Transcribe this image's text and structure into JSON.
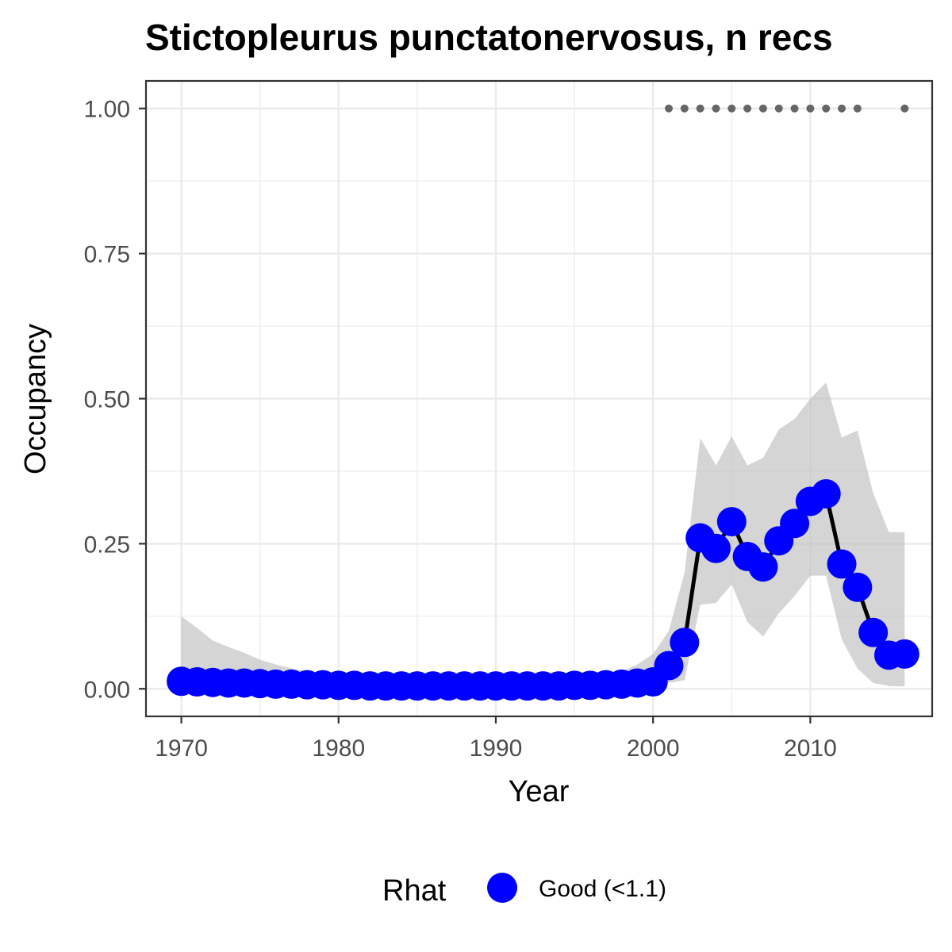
{
  "chart_data": {
    "type": "line",
    "title": "Stictopleurus punctatonervosus, n recs",
    "xlabel": "Year",
    "ylabel": "Occupancy",
    "xlim": [
      1967.75,
      2017.75
    ],
    "ylim": [
      -0.0475,
      1.0475
    ],
    "x_ticks": [
      1970,
      1980,
      1990,
      2000,
      2010
    ],
    "x_tick_labels": [
      "1970",
      "1980",
      "1990",
      "2000",
      "2010"
    ],
    "y_ticks": [
      0,
      0.25,
      0.5,
      0.75,
      1.0
    ],
    "y_tick_labels": [
      "0.00",
      "0.25",
      "0.50",
      "0.75",
      "1.00"
    ],
    "grid": true,
    "colors": {
      "point": "#0000ff",
      "line": "#000000",
      "ribbon": "#bebebe",
      "records": "#666666",
      "grid": "#ebebeb",
      "panel_border": "#333333"
    },
    "series": [
      {
        "name": "Occupancy",
        "legend_group": "Good (<1.1)",
        "x": [
          1970,
          1971,
          1972,
          1973,
          1974,
          1975,
          1976,
          1977,
          1978,
          1979,
          1980,
          1981,
          1982,
          1983,
          1984,
          1985,
          1986,
          1987,
          1988,
          1989,
          1990,
          1991,
          1992,
          1993,
          1994,
          1995,
          1996,
          1997,
          1998,
          1999,
          2000,
          2001,
          2002,
          2003,
          2004,
          2005,
          2006,
          2007,
          2008,
          2009,
          2010,
          2011,
          2012,
          2013,
          2014,
          2015,
          2016
        ],
        "y": [
          0.013,
          0.012,
          0.011,
          0.01,
          0.01,
          0.009,
          0.008,
          0.008,
          0.007,
          0.007,
          0.006,
          0.006,
          0.005,
          0.005,
          0.005,
          0.005,
          0.005,
          0.005,
          0.005,
          0.005,
          0.005,
          0.005,
          0.005,
          0.005,
          0.005,
          0.006,
          0.006,
          0.007,
          0.008,
          0.01,
          0.012,
          0.04,
          0.08,
          0.26,
          0.242,
          0.288,
          0.228,
          0.21,
          0.255,
          0.285,
          0.323,
          0.336,
          0.215,
          0.175,
          0.097,
          0.058,
          0.06
        ],
        "lower": [
          0.0,
          0.0,
          0.0,
          0.0,
          0.0,
          0.0,
          0.0,
          0.0,
          0.0,
          0.0,
          0.0,
          0.0,
          0.0,
          0.0,
          0.0,
          0.0,
          0.0,
          0.0,
          0.0,
          0.0,
          0.0,
          0.0,
          0.0,
          0.0,
          0.0,
          0.0,
          0.0,
          0.0,
          0.0,
          0.0,
          0.0,
          0.01,
          0.015,
          0.145,
          0.148,
          0.18,
          0.115,
          0.09,
          0.13,
          0.16,
          0.195,
          0.195,
          0.085,
          0.035,
          0.01,
          0.005,
          0.004
        ],
        "upper": [
          0.125,
          0.105,
          0.083,
          0.072,
          0.062,
          0.05,
          0.042,
          0.035,
          0.03,
          0.025,
          0.022,
          0.02,
          0.018,
          0.016,
          0.015,
          0.015,
          0.015,
          0.015,
          0.015,
          0.015,
          0.015,
          0.015,
          0.015,
          0.015,
          0.017,
          0.018,
          0.02,
          0.023,
          0.03,
          0.042,
          0.06,
          0.1,
          0.2,
          0.432,
          0.385,
          0.435,
          0.385,
          0.398,
          0.447,
          0.465,
          0.5,
          0.528,
          0.433,
          0.445,
          0.337,
          0.27,
          0.27
        ]
      }
    ],
    "records": {
      "x": [
        2001,
        2002,
        2003,
        2004,
        2005,
        2006,
        2007,
        2008,
        2009,
        2010,
        2011,
        2012,
        2013,
        2016
      ],
      "y": 1.0
    },
    "legend": {
      "title": "Rhat",
      "entries": [
        {
          "label": "Good (<1.1)",
          "color": "#0000ff"
        }
      ],
      "position": "bottom"
    }
  }
}
